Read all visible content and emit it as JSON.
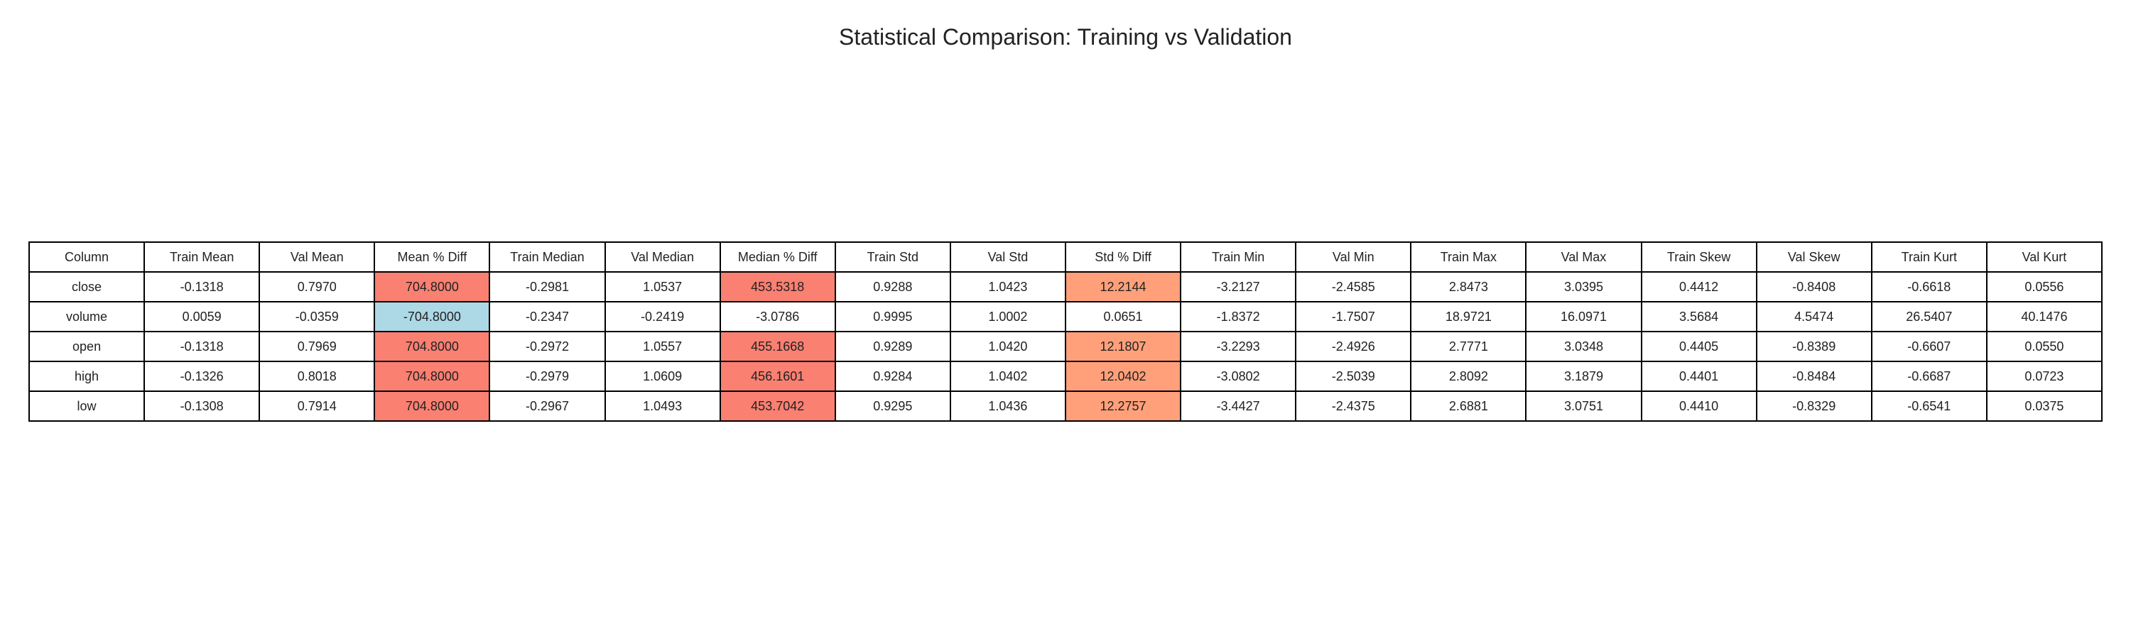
{
  "chart_data": {
    "type": "table",
    "title": "Statistical Comparison: Training vs Validation",
    "columns": [
      "Column",
      "Train Mean",
      "Val Mean",
      "Mean % Diff",
      "Train Median",
      "Val Median",
      "Median % Diff",
      "Train Std",
      "Val Std",
      "Std % Diff",
      "Train Min",
      "Val Min",
      "Train Max",
      "Val Max",
      "Train Skew",
      "Val Skew",
      "Train Kurt",
      "Val Kurt"
    ],
    "rows": [
      [
        "close",
        "-0.1318",
        "0.7970",
        "704.8000",
        "-0.2981",
        "1.0537",
        "453.5318",
        "0.9288",
        "1.0423",
        "12.2144",
        "-3.2127",
        "-2.4585",
        "2.8473",
        "3.0395",
        "0.4412",
        "-0.8408",
        "-0.6618",
        "0.0556"
      ],
      [
        "volume",
        "0.0059",
        "-0.0359",
        "-704.8000",
        "-0.2347",
        "-0.2419",
        "-3.0786",
        "0.9995",
        "1.0002",
        "0.0651",
        "-1.8372",
        "-1.7507",
        "18.9721",
        "16.0971",
        "3.5684",
        "4.5474",
        "26.5407",
        "40.1476"
      ],
      [
        "open",
        "-0.1318",
        "0.7969",
        "704.8000",
        "-0.2972",
        "1.0557",
        "455.1668",
        "0.9289",
        "1.0420",
        "12.1807",
        "-3.2293",
        "-2.4926",
        "2.7771",
        "3.0348",
        "0.4405",
        "-0.8389",
        "-0.6607",
        "0.0550"
      ],
      [
        "high",
        "-0.1326",
        "0.8018",
        "704.8000",
        "-0.2979",
        "1.0609",
        "456.1601",
        "0.9284",
        "1.0402",
        "12.0402",
        "-3.0802",
        "-2.5039",
        "2.8092",
        "3.1879",
        "0.4401",
        "-0.8484",
        "-0.6687",
        "0.0723"
      ],
      [
        "low",
        "-0.1308",
        "0.7914",
        "704.8000",
        "-0.2967",
        "1.0493",
        "453.7042",
        "0.9295",
        "1.0436",
        "12.2757",
        "-3.4427",
        "-2.4375",
        "2.6881",
        "3.0751",
        "0.4410",
        "-0.8329",
        "-0.6541",
        "0.0375"
      ]
    ],
    "cell_colors": [
      [
        "#ffffff",
        "#ffffff",
        "#ffffff",
        "#fa8072",
        "#ffffff",
        "#ffffff",
        "#fa8072",
        "#ffffff",
        "#ffffff",
        "#ffa07a",
        "#ffffff",
        "#ffffff",
        "#ffffff",
        "#ffffff",
        "#ffffff",
        "#ffffff",
        "#ffffff",
        "#ffffff"
      ],
      [
        "#ffffff",
        "#ffffff",
        "#ffffff",
        "#add8e6",
        "#ffffff",
        "#ffffff",
        "#ffffff",
        "#ffffff",
        "#ffffff",
        "#ffffff",
        "#ffffff",
        "#ffffff",
        "#ffffff",
        "#ffffff",
        "#ffffff",
        "#ffffff",
        "#ffffff",
        "#ffffff"
      ],
      [
        "#ffffff",
        "#ffffff",
        "#ffffff",
        "#fa8072",
        "#ffffff",
        "#ffffff",
        "#fa8072",
        "#ffffff",
        "#ffffff",
        "#ffa07a",
        "#ffffff",
        "#ffffff",
        "#ffffff",
        "#ffffff",
        "#ffffff",
        "#ffffff",
        "#ffffff",
        "#ffffff"
      ],
      [
        "#ffffff",
        "#ffffff",
        "#ffffff",
        "#fa8072",
        "#ffffff",
        "#ffffff",
        "#fa8072",
        "#ffffff",
        "#ffffff",
        "#ffa07a",
        "#ffffff",
        "#ffffff",
        "#ffffff",
        "#ffffff",
        "#ffffff",
        "#ffffff",
        "#ffffff",
        "#ffffff"
      ],
      [
        "#ffffff",
        "#ffffff",
        "#ffffff",
        "#fa8072",
        "#ffffff",
        "#ffffff",
        "#fa8072",
        "#ffffff",
        "#ffffff",
        "#ffa07a",
        "#ffffff",
        "#ffffff",
        "#ffffff",
        "#ffffff",
        "#ffffff",
        "#ffffff",
        "#ffffff",
        "#ffffff"
      ]
    ]
  }
}
